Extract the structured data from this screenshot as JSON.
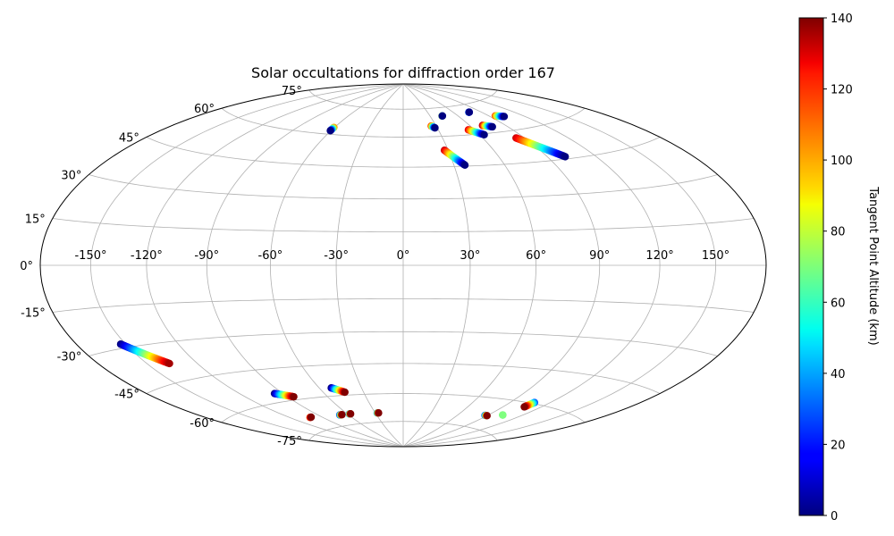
{
  "chart_data": {
    "type": "scatter",
    "projection": "hammer",
    "title": "Solar occultations for diffraction order 167",
    "lon_ticks": [
      -150,
      -120,
      -90,
      -60,
      -30,
      0,
      30,
      60,
      90,
      120,
      150
    ],
    "lat_ticks": [
      -75,
      -60,
      -45,
      -30,
      -15,
      0,
      15,
      30,
      45,
      60,
      75
    ],
    "lon_tick_labels": [
      "-150°",
      "-120°",
      "-90°",
      "-60°",
      "-30°",
      "0°",
      "30°",
      "60°",
      "90°",
      "120°",
      "150°"
    ],
    "lat_tick_labels": [
      "-75°",
      "-60°",
      "-45°",
      "-30°",
      "-15°",
      "0°",
      "15°",
      "30°",
      "45°",
      "60°",
      "75°"
    ],
    "grid": true,
    "colormap": "jet",
    "colorbar": {
      "label": "Tangent Point Altitude (km)",
      "range": [
        0,
        140
      ],
      "ticks": [
        0,
        20,
        40,
        60,
        80,
        100,
        120,
        140
      ],
      "tick_labels": [
        "0",
        "20",
        "40",
        "60",
        "80",
        "100",
        "120",
        "140"
      ],
      "placement": "right"
    },
    "tracks": [
      {
        "lon_start": -60.5,
        "lat_start": 63.5,
        "lon_end": -60.5,
        "lat_end": 61.8,
        "alt_start": 100,
        "alt_end": 0
      },
      {
        "lon_start": 25.5,
        "lat_start": 65.5,
        "lon_end": 28.0,
        "lat_end": 64.5,
        "alt_start": 110,
        "alt_end": 0
      },
      {
        "lon_start": 43.0,
        "lat_start": 70.5,
        "lon_end": 43.5,
        "lat_end": 70.5,
        "alt_start": 100,
        "alt_end": 0
      },
      {
        "lon_start": 27.5,
        "lat_start": 53.0,
        "lon_end": 36.5,
        "lat_end": 45.5,
        "alt_start": 130,
        "alt_end": 0
      },
      {
        "lon_start": 55.0,
        "lat_start": 62.5,
        "lon_end": 63.5,
        "lat_end": 59.5,
        "alt_start": 125,
        "alt_end": 0
      },
      {
        "lon_start": 71.0,
        "lat_start": 64.0,
        "lon_end": 77.5,
        "lat_end": 62.8,
        "alt_start": 130,
        "alt_end": 0
      },
      {
        "lon_start": 77.0,
        "lat_start": 71.0,
        "lon_end": 77.5,
        "lat_end": 71.0,
        "alt_start": 40,
        "alt_end": 0
      },
      {
        "lon_start": 96.0,
        "lat_start": 67.5,
        "lon_end": 102.5,
        "lat_end": 66.5,
        "alt_start": 110,
        "alt_end": 0
      },
      {
        "lon_start": 84.0,
        "lat_start": 56.5,
        "lon_end": 101.0,
        "lat_end": 46.0,
        "alt_start": 130,
        "alt_end": 0
      },
      {
        "lon_start": -153.0,
        "lat_start": -28.5,
        "lon_end": -136.5,
        "lat_end": -38.0,
        "alt_start": 0,
        "alt_end": 135
      },
      {
        "lon_start": -96.0,
        "lat_start": -56.0,
        "lon_end": -85.5,
        "lat_end": -58.5,
        "alt_start": 0,
        "alt_end": 140
      },
      {
        "lon_start": -102.0,
        "lat_start": -68.5,
        "lon_end": -100.5,
        "lat_end": -68.5,
        "alt_start": 110,
        "alt_end": 140
      },
      {
        "lon_start": -69.0,
        "lat_start": -69.5,
        "lon_end": -66.5,
        "lat_end": -69.5,
        "alt_start": 30,
        "alt_end": 140
      },
      {
        "lon_start": -58.0,
        "lat_start": -69.5,
        "lon_end": -56.5,
        "lat_end": -69.5,
        "alt_start": 40,
        "alt_end": 140
      },
      {
        "lon_start": -51.5,
        "lat_start": -56.0,
        "lon_end": -44.0,
        "lat_end": -58.5,
        "alt_start": 0,
        "alt_end": 140
      },
      {
        "lon_start": -28.0,
        "lat_start": -70.0,
        "lon_end": -26.5,
        "lat_end": -70.0,
        "alt_start": 40,
        "alt_end": 140
      },
      {
        "lon_start": 87.5,
        "lat_start": -68.5,
        "lon_end": 90.0,
        "lat_end": -68.5,
        "alt_start": 30,
        "alt_end": 140
      },
      {
        "lon_start": 103.0,
        "lat_start": -67.0,
        "lon_end": 103.0,
        "lat_end": -67.0,
        "alt_start": 70,
        "alt_end": 70
      },
      {
        "lon_start": 108.5,
        "lat_start": -59.5,
        "lon_end": 107.0,
        "lat_end": -62.0,
        "alt_start": 30,
        "alt_end": 140
      }
    ]
  }
}
